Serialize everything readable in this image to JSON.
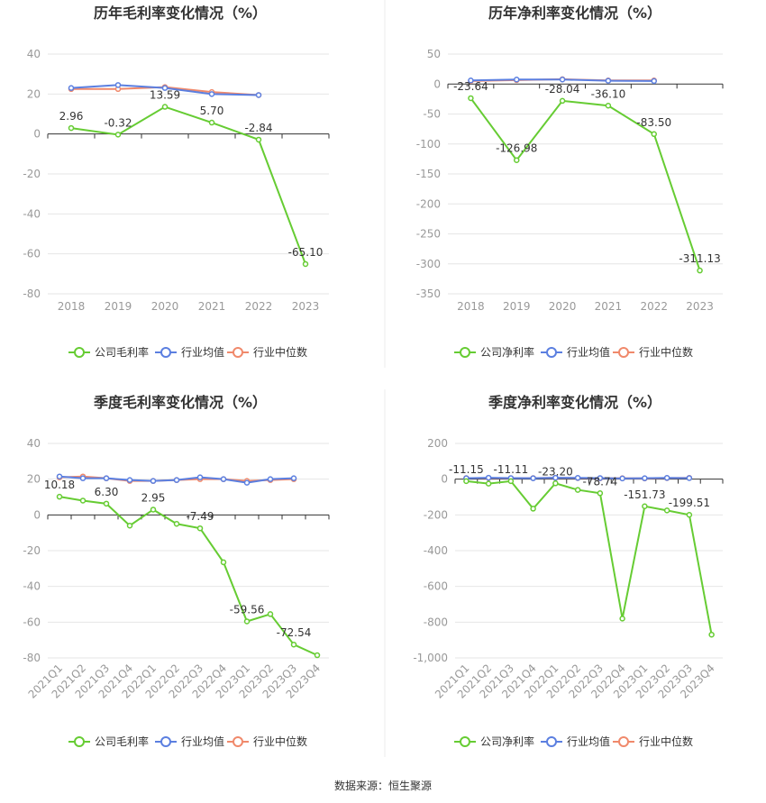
{
  "source": "数据来源：恒生聚源",
  "legend_common": [
    "行业均值",
    "行业中位数"
  ],
  "colors": {
    "company": "#66cc33",
    "mean": "#5b7fe0",
    "median": "#f0896b",
    "grid": "#e6e6e6",
    "axis": "#333333"
  },
  "chart_data": [
    {
      "type": "line",
      "title": "历年毛利率变化情况（%）",
      "categories": [
        "2018",
        "2019",
        "2020",
        "2021",
        "2022",
        "2023"
      ],
      "ylim": [
        -80,
        40
      ],
      "yticks": [
        40,
        20,
        0,
        -20,
        -40,
        -60,
        -80
      ],
      "series": [
        {
          "name": "公司毛利率",
          "values": [
            2.96,
            -0.32,
            13.59,
            5.7,
            -2.84,
            -65.1
          ]
        },
        {
          "name": "行业均值",
          "values": [
            23.0,
            24.5,
            23.0,
            20.0,
            19.5,
            null
          ]
        },
        {
          "name": "行业中位数",
          "values": [
            22.5,
            22.5,
            23.5,
            21.0,
            19.5,
            null
          ]
        }
      ],
      "labels": [
        "2.96",
        "-0.32",
        "13.59",
        "5.70",
        "-2.84",
        "-65.10"
      ],
      "rotate_x": false
    },
    {
      "type": "line",
      "title": "历年净利率变化情况（%）",
      "categories": [
        "2018",
        "2019",
        "2020",
        "2021",
        "2022",
        "2023"
      ],
      "ylim": [
        -350,
        50
      ],
      "yticks": [
        50,
        0,
        -50,
        -100,
        -150,
        -200,
        -250,
        -300,
        -350
      ],
      "series": [
        {
          "name": "公司净利率",
          "values": [
            -23.64,
            -126.98,
            -28.04,
            -36.1,
            -83.5,
            -311.13
          ]
        },
        {
          "name": "行业均值",
          "values": [
            6.0,
            7.5,
            7.5,
            5.5,
            5.0,
            null
          ]
        },
        {
          "name": "行业中位数",
          "values": [
            5.0,
            6.5,
            8.0,
            6.0,
            6.0,
            null
          ]
        }
      ],
      "labels": [
        "-23.64",
        "-126.98",
        "-28.04",
        "-36.10",
        "-83.50",
        "-311.13"
      ],
      "rotate_x": false
    },
    {
      "type": "line",
      "title": "季度毛利率变化情况（%）",
      "categories": [
        "2021Q1",
        "2021Q2",
        "2021Q3",
        "2021Q4",
        "2022Q1",
        "2022Q2",
        "2022Q3",
        "2022Q4",
        "2023Q1",
        "2023Q2",
        "2023Q3",
        "2023Q4"
      ],
      "ylim": [
        -80,
        40
      ],
      "yticks": [
        40,
        20,
        0,
        -20,
        -40,
        -60,
        -80
      ],
      "series": [
        {
          "name": "公司毛利率",
          "values": [
            10.18,
            8.0,
            6.3,
            -6.0,
            2.95,
            -5.0,
            -7.49,
            -26.5,
            -59.56,
            -55.5,
            -72.54,
            -78.5
          ]
        },
        {
          "name": "行业均值",
          "values": [
            21.5,
            20.5,
            20.5,
            19.5,
            19.0,
            19.5,
            21.0,
            20.0,
            18.0,
            20.0,
            20.5,
            null
          ]
        },
        {
          "name": "行业中位数",
          "values": [
            21.0,
            21.5,
            20.5,
            19.0,
            19.0,
            19.5,
            20.0,
            20.0,
            19.0,
            19.5,
            20.0,
            null
          ]
        }
      ],
      "labels": [
        "10.18",
        "",
        "6.30",
        "",
        "2.95",
        "",
        "-7.49",
        "",
        "-59.56",
        "",
        "-72.54",
        ""
      ],
      "rotate_x": true
    },
    {
      "type": "line",
      "title": "季度净利率变化情况（%）",
      "categories": [
        "2021Q1",
        "2021Q2",
        "2021Q3",
        "2021Q4",
        "2022Q1",
        "2022Q2",
        "2022Q3",
        "2022Q4",
        "2023Q1",
        "2023Q2",
        "2023Q3",
        "2023Q4"
      ],
      "ylim": [
        -1000,
        200
      ],
      "yticks": [
        200,
        0,
        -200,
        -400,
        -600,
        -800,
        -1000
      ],
      "ytick_labels": [
        "200",
        "0",
        "-200",
        "-400",
        "-600",
        "-800",
        "-1,000"
      ],
      "series": [
        {
          "name": "公司净利率",
          "values": [
            -11.15,
            -25.0,
            -11.11,
            -165.0,
            -23.2,
            -60.0,
            -78.74,
            -780.0,
            -151.73,
            -175.0,
            -199.51,
            -870.0
          ]
        },
        {
          "name": "行业均值",
          "values": [
            5.0,
            8.0,
            6.0,
            5.0,
            8.0,
            7.0,
            6.0,
            4.0,
            5.0,
            7.0,
            6.0,
            null
          ]
        },
        {
          "name": "行业中位数",
          "values": [
            6.0,
            6.0,
            5.0,
            6.0,
            7.0,
            6.0,
            5.0,
            5.0,
            4.0,
            6.0,
            7.0,
            null
          ]
        }
      ],
      "labels": [
        "-11.15",
        "",
        "-11.11",
        "",
        "-23.20",
        "",
        "-78.74",
        "",
        "-151.73",
        "",
        "-199.51",
        ""
      ],
      "rotate_x": true
    }
  ]
}
